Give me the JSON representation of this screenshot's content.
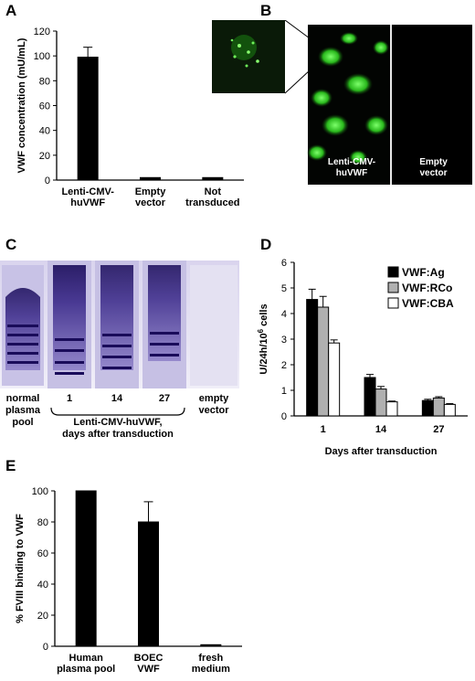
{
  "panels": {
    "A": {
      "letter": "A"
    },
    "B": {
      "letter": "B",
      "micro_left_label": "Lenti-CMV-\nhuVWF",
      "micro_right_label": "Empty\nvector"
    },
    "C": {
      "letter": "C",
      "lanes": [
        "normal\nplasma\npool",
        "1",
        "14",
        "27",
        "empty\nvector"
      ],
      "bracket_label": "Lenti-CMV-huVWF,\ndays after transduction"
    },
    "D": {
      "letter": "D"
    },
    "E": {
      "letter": "E"
    }
  },
  "chart_data": [
    {
      "id": "A",
      "type": "bar",
      "ylabel": "VWF concentration (mU/mL)",
      "ylim": [
        0,
        120
      ],
      "yticks": [
        0,
        20,
        40,
        60,
        80,
        100,
        120
      ],
      "categories": [
        "Lenti-CMV-\nhuVWF",
        "Empty\nvector",
        "Not\ntransduced"
      ],
      "values": [
        99,
        2,
        2
      ],
      "errors": [
        8,
        0,
        0
      ],
      "color": "#000000"
    },
    {
      "id": "D",
      "type": "bar",
      "xlabel": "Days after transduction",
      "ylabel": "U/24h/10^6 cells",
      "ylim": [
        0,
        6
      ],
      "yticks": [
        0,
        1,
        2,
        3,
        4,
        5,
        6
      ],
      "categories": [
        "1",
        "14",
        "27"
      ],
      "legend": "top-right",
      "series": [
        {
          "name": "VWF:Ag",
          "values": [
            4.55,
            1.5,
            0.6
          ],
          "errors": [
            0.4,
            0.12,
            0.05
          ],
          "color": "#000000"
        },
        {
          "name": "VWF:RCo",
          "values": [
            4.25,
            1.05,
            0.7
          ],
          "errors": [
            0.42,
            0.1,
            0.05
          ],
          "color": "#b0b0b0"
        },
        {
          "name": "VWF:CBA",
          "values": [
            2.85,
            0.55,
            0.45
          ],
          "errors": [
            0.12,
            0.03,
            0.03
          ],
          "color": "#ffffff"
        }
      ]
    },
    {
      "id": "E",
      "type": "bar",
      "ylabel": "% FVIII binding to VWF",
      "ylim": [
        0,
        100
      ],
      "yticks": [
        0,
        20,
        40,
        60,
        80,
        100
      ],
      "categories": [
        "Human\nplasma pool",
        "BOEC\nVWF",
        "fresh\nmedium"
      ],
      "values": [
        100,
        80,
        1
      ],
      "errors": [
        0,
        13,
        0
      ],
      "color": "#000000"
    }
  ]
}
